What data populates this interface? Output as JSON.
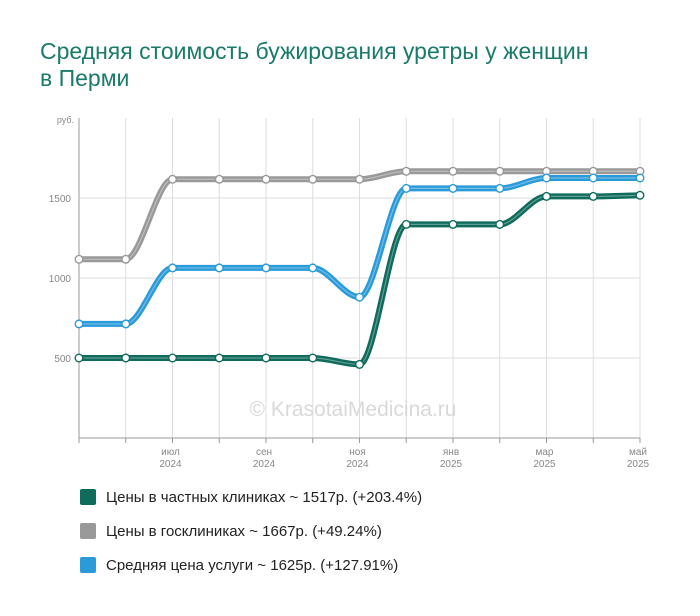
{
  "chart_data": {
    "type": "line",
    "title": "Средняя стоимость бужирования уретры у женщин в Перми",
    "ylabel": "руб.",
    "ylim": [
      0,
      2000
    ],
    "yticks": [
      500,
      1000,
      1500
    ],
    "grid": true,
    "x": [
      "2024-05",
      "2024-06",
      "2024-07",
      "2024-08",
      "2024-09",
      "2024-10",
      "2024-11",
      "2024-12",
      "2025-01",
      "2025-02",
      "2025-03",
      "2025-04",
      "2025-05"
    ],
    "xtick_labels": [
      {
        "index": 2,
        "month": "июл",
        "year": "2024"
      },
      {
        "index": 4,
        "month": "сен",
        "year": "2024"
      },
      {
        "index": 6,
        "month": "ноя",
        "year": "2024"
      },
      {
        "index": 8,
        "month": "янв",
        "year": "2025"
      },
      {
        "index": 10,
        "month": "мар",
        "year": "2025"
      },
      {
        "index": 12,
        "month": "май",
        "year": "2025"
      }
    ],
    "series": [
      {
        "name": "Цены в частных клиниках ~ 1517р. (+203.4%)",
        "color": "#0f6b5c",
        "values": [
          500,
          500,
          500,
          500,
          500,
          500,
          460,
          1335,
          1335,
          1335,
          1510,
          1510,
          1517
        ]
      },
      {
        "name": "Цены в госклиниках ~ 1667р. (+49.24%)",
        "color": "#999999",
        "values": [
          1117,
          1117,
          1617,
          1617,
          1617,
          1617,
          1617,
          1667,
          1667,
          1667,
          1667,
          1667,
          1667
        ]
      },
      {
        "name": "Средняя цена услуги ~ 1625р. (+127.91%)",
        "color": "#2a9ad9",
        "values": [
          713,
          713,
          1063,
          1063,
          1063,
          1063,
          880,
          1560,
          1560,
          1560,
          1625,
          1625,
          1625
        ]
      }
    ]
  },
  "watermark": "© KrasotaiMedicina.ru"
}
